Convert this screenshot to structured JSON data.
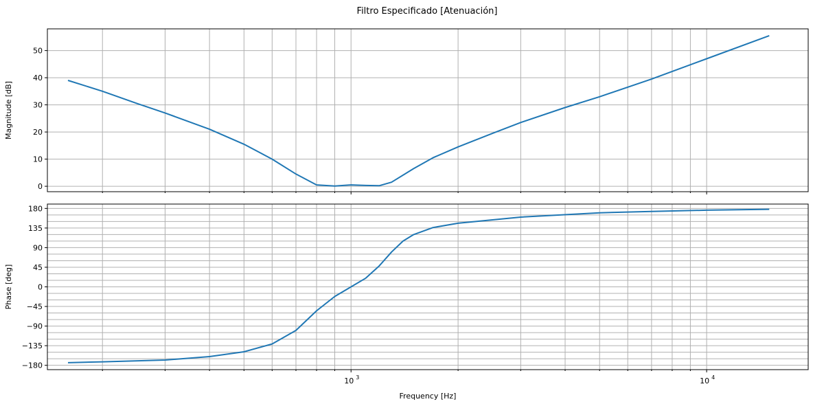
{
  "figure": {
    "title": "Filtro Especificado [Atenuación]",
    "xlabel": "Frequency [Hz]",
    "x_tick_labels": [
      {
        "value": 1000,
        "base": "10",
        "exp": "3"
      },
      {
        "value": 10000,
        "base": "10",
        "exp": "4"
      }
    ]
  },
  "chart_data": [
    {
      "type": "line",
      "name": "magnitude",
      "xlabel": "",
      "ylabel": "Magnitude [dB]",
      "xscale": "log",
      "xlim": [
        140,
        19300
      ],
      "ylim": [
        -2,
        58
      ],
      "yticks": [
        0,
        10,
        20,
        30,
        40,
        50
      ],
      "ytick_labels": [
        "0",
        "10",
        "20",
        "30",
        "40",
        "50"
      ],
      "grid": true,
      "line_color": "#1f77b4",
      "series": [
        {
          "x": [
            160,
            200,
            250,
            300,
            400,
            500,
            600,
            700,
            800,
            900,
            1000,
            1100,
            1200,
            1300,
            1500,
            1700,
            2000,
            2500,
            3000,
            4000,
            5000,
            7000,
            10000,
            15000
          ],
          "y": [
            39,
            35,
            30.5,
            27,
            21,
            15.5,
            10,
            4.5,
            0.5,
            0.1,
            0.5,
            0.3,
            0.2,
            1.5,
            6.5,
            10.5,
            14.5,
            19.5,
            23.5,
            29,
            33,
            39.5,
            47,
            55.5
          ]
        }
      ]
    },
    {
      "type": "line",
      "name": "phase",
      "xlabel": "Frequency [Hz]",
      "ylabel": "Phase [deg]",
      "xscale": "log",
      "xlim": [
        140,
        19300
      ],
      "ylim": [
        -190,
        190
      ],
      "yticks": [
        -180,
        -135,
        -90,
        -45,
        0,
        45,
        90,
        135,
        180
      ],
      "ytick_labels": [
        "−180",
        "−135",
        "−90",
        "−45",
        "0",
        "45",
        "90",
        "135",
        "180"
      ],
      "minor_gridlines_y_step": 15,
      "grid": true,
      "line_color": "#1f77b4",
      "series": [
        {
          "x": [
            160,
            200,
            300,
            400,
            500,
            600,
            700,
            800,
            900,
            1000,
            1100,
            1200,
            1300,
            1400,
            1500,
            1700,
            2000,
            3000,
            5000,
            7000,
            10000,
            15000
          ],
          "y": [
            -174,
            -172,
            -168,
            -160,
            -149,
            -131,
            -100,
            -55,
            -22,
            0,
            20,
            48,
            80,
            105,
            120,
            136,
            146,
            160,
            170,
            173,
            176,
            178
          ]
        }
      ]
    }
  ]
}
